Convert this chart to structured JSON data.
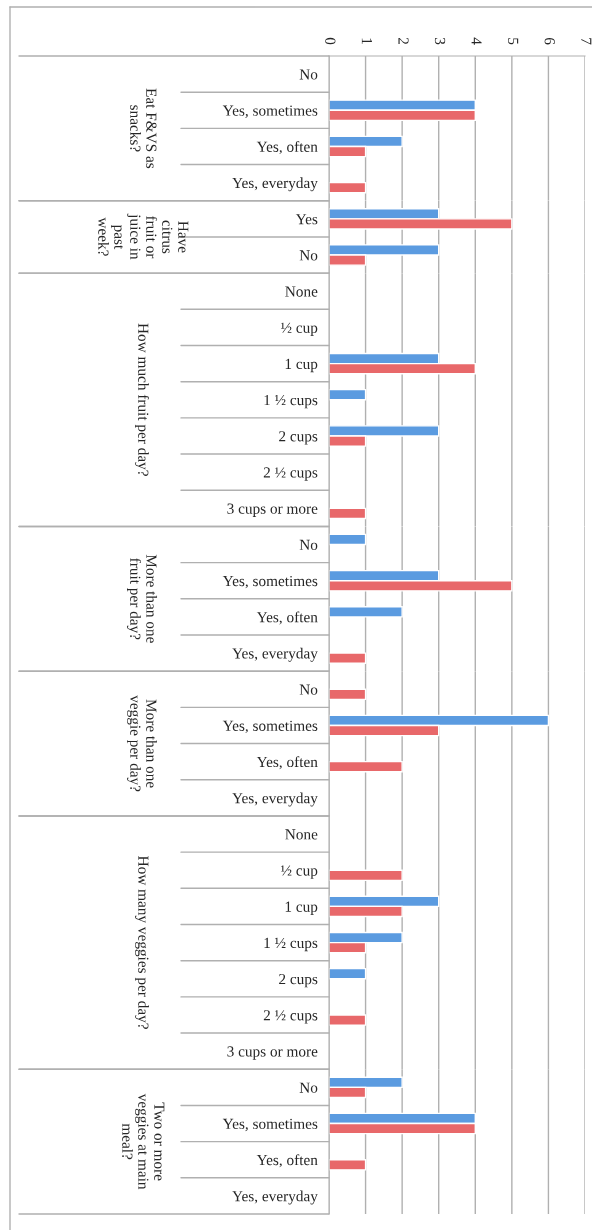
{
  "chart_data": [
    {
      "type": "bar",
      "orientation": "horizontal",
      "ylabel": "Eat F&VS as\nsnacks?",
      "categories": [
        "No",
        "Yes, sometimes",
        "Yes, often",
        "Yes, everyday"
      ],
      "series": [
        {
          "color": "#5b9be0",
          "values": [
            0,
            4,
            2,
            0
          ]
        },
        {
          "color": "#e8686a",
          "values": [
            0,
            4,
            1,
            1
          ]
        }
      ],
      "xlim": [
        0,
        7
      ],
      "xticks": [
        0,
        1,
        2,
        3,
        4,
        5,
        6,
        7
      ],
      "grid": "x"
    },
    {
      "type": "bar",
      "orientation": "horizontal",
      "ylabel": "Have\ncitrus\nfruit or\njuice in\npast\nweek?",
      "categories": [
        "Yes",
        "No"
      ],
      "series": [
        {
          "color": "#5b9be0",
          "values": [
            3,
            3
          ]
        },
        {
          "color": "#e8686a",
          "values": [
            5,
            1
          ]
        }
      ],
      "xlim": [
        0,
        7
      ],
      "xticks": [
        0,
        1,
        2,
        3,
        4,
        5,
        6,
        7
      ],
      "grid": "x",
      "tick_labels": "y"
    },
    {
      "type": "bar",
      "orientation": "horizontal",
      "ylabel": "How much fruit per day?",
      "categories": [
        "None",
        "½ cup",
        "1 cup",
        "1 ½ cups",
        "2 cups",
        "2 ½ cups",
        "3 cups or more"
      ],
      "series": [
        {
          "color": "#5b9be0",
          "values": [
            0,
            0,
            3,
            1,
            3,
            0,
            0
          ]
        },
        {
          "color": "#e8686a",
          "values": [
            0,
            0,
            4,
            0,
            1,
            0,
            1
          ]
        }
      ],
      "xlim": [
        0,
        7
      ],
      "xticks": [
        0,
        1,
        2,
        3,
        4,
        5,
        6,
        7
      ],
      "grid": "x",
      "tick_labels": "y"
    },
    {
      "type": "bar",
      "orientation": "horizontal",
      "ylabel": "More than one\nfruit per day?",
      "categories": [
        "No",
        "Yes, sometimes",
        "Yes, often",
        "Yes, everyday"
      ],
      "series": [
        {
          "color": "#5b9be0",
          "values": [
            1,
            3,
            2,
            0
          ]
        },
        {
          "color": "#e8686a",
          "values": [
            0,
            5,
            0,
            1
          ]
        }
      ],
      "xlim": [
        0,
        7
      ],
      "xticks": [
        0,
        1,
        2,
        3,
        4,
        5,
        6,
        7
      ],
      "grid": "x",
      "tick_labels": "y"
    },
    {
      "type": "bar",
      "orientation": "horizontal",
      "ylabel": "More than one\nveggie per day?",
      "categories": [
        "No",
        "Yes, sometimes",
        "Yes, often",
        "Yes, everyday"
      ],
      "series": [
        {
          "color": "#5b9be0",
          "values": [
            0,
            6,
            0,
            0
          ]
        },
        {
          "color": "#e8686a",
          "values": [
            1,
            3,
            2,
            0
          ]
        }
      ],
      "xlim": [
        0,
        7
      ],
      "xticks": [
        0,
        1,
        2,
        3,
        4,
        5,
        6,
        7
      ],
      "grid": "x",
      "tick_labels": "y"
    },
    {
      "type": "bar",
      "orientation": "horizontal",
      "ylabel": "How many veggies per day?",
      "categories": [
        "None",
        "½ cup",
        "1 cup",
        "1 ½ cups",
        "2 cups",
        "2 ½ cups",
        "3 cups or more"
      ],
      "series": [
        {
          "color": "#5b9be0",
          "values": [
            0,
            0,
            3,
            2,
            1,
            0,
            0
          ]
        },
        {
          "color": "#e8686a",
          "values": [
            0,
            2,
            2,
            1,
            0,
            1,
            0
          ]
        }
      ],
      "xlim": [
        0,
        7
      ],
      "xticks": [
        0,
        1,
        2,
        3,
        4,
        5,
        6,
        7
      ],
      "grid": "x",
      "tick_labels": "y"
    },
    {
      "type": "bar",
      "orientation": "horizontal",
      "ylabel": "Two or more\nveggies at main\nmeal?",
      "categories": [
        "No",
        "Yes, sometimes",
        "Yes, often",
        "Yes, everyday"
      ],
      "series": [
        {
          "color": "#5b9be0",
          "values": [
            2,
            4,
            0,
            0
          ]
        },
        {
          "color": "#e8686a",
          "values": [
            1,
            4,
            1,
            0
          ]
        }
      ],
      "xlim": [
        0,
        7
      ],
      "xticks": [
        0,
        1,
        2,
        3,
        4,
        5,
        6,
        7
      ],
      "grid": "x",
      "tick_labels": "y"
    }
  ]
}
